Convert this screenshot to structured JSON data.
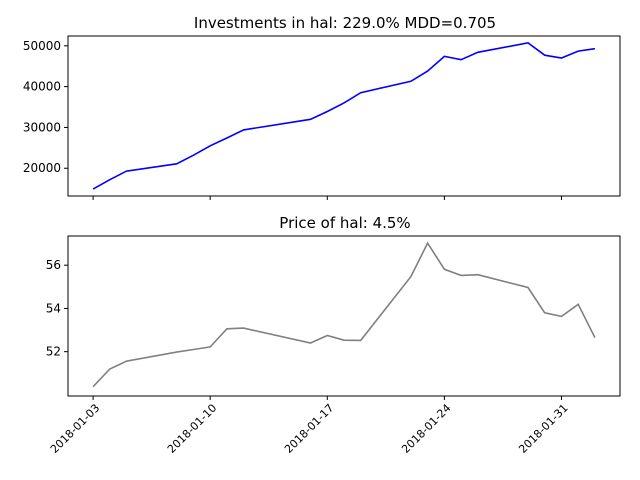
{
  "chart_data": [
    {
      "type": "line",
      "title": "Investments in hal: 229.0%  MDD=0.705",
      "xlabel": "",
      "ylabel": "",
      "color": "#0000ff",
      "x": [
        "2018-01-03",
        "2018-01-04",
        "2018-01-05",
        "2018-01-08",
        "2018-01-09",
        "2018-01-10",
        "2018-01-11",
        "2018-01-12",
        "2018-01-16",
        "2018-01-17",
        "2018-01-18",
        "2018-01-19",
        "2018-01-22",
        "2018-01-23",
        "2018-01-24",
        "2018-01-25",
        "2018-01-26",
        "2018-01-29",
        "2018-01-30",
        "2018-01-31",
        "2018-02-01",
        "2018-02-02"
      ],
      "values": [
        14900,
        17200,
        19300,
        21100,
        23200,
        25500,
        27400,
        29400,
        32000,
        33900,
        36000,
        38500,
        41300,
        43800,
        47400,
        46600,
        48400,
        50700,
        47700,
        47000,
        48700,
        49300
      ],
      "yticks": [
        "20000",
        "30000",
        "40000",
        "50000"
      ],
      "ylim": [
        13200,
        52400
      ]
    },
    {
      "type": "line",
      "title": "Price of hal: 4.5%",
      "xlabel": "",
      "ylabel": "",
      "color": "#808080",
      "x": [
        "2018-01-03",
        "2018-01-04",
        "2018-01-05",
        "2018-01-08",
        "2018-01-09",
        "2018-01-10",
        "2018-01-11",
        "2018-01-12",
        "2018-01-16",
        "2018-01-17",
        "2018-01-18",
        "2018-01-19",
        "2018-01-22",
        "2018-01-23",
        "2018-01-24",
        "2018-01-25",
        "2018-01-26",
        "2018-01-29",
        "2018-01-30",
        "2018-01-31",
        "2018-02-01",
        "2018-02-02"
      ],
      "values": [
        50.38,
        51.2,
        51.56,
        51.98,
        52.1,
        52.22,
        53.06,
        53.09,
        52.4,
        52.75,
        52.53,
        52.52,
        55.47,
        57.02,
        55.81,
        55.53,
        55.56,
        54.97,
        53.8,
        53.63,
        54.19,
        52.65
      ],
      "yticks": [
        "52",
        "54",
        "56"
      ],
      "ylim": [
        49.95,
        57.35
      ],
      "xticks": [
        "2018-01-03",
        "2018-01-10",
        "2018-01-17",
        "2018-01-24",
        "2018-01-31"
      ]
    }
  ]
}
